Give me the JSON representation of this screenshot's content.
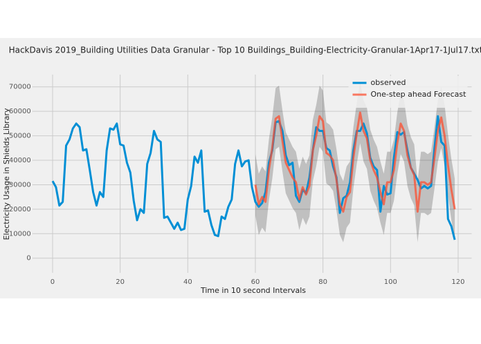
{
  "chart_data": {
    "type": "line",
    "title": "HackDavis 2019_Building Utilities Data Granular - Top 10 Buildings_Building-Electricity-Granular-1Apr17-1Jul17.txt",
    "xlabel": "Time in 10 second Intervals",
    "ylabel": "Electricity Usage in Shields Library",
    "x": [
      0,
      1,
      2,
      3,
      4,
      5,
      6,
      7,
      8,
      9,
      10,
      11,
      12,
      13,
      14,
      15,
      16,
      17,
      18,
      19,
      20,
      21,
      22,
      23,
      24,
      25,
      26,
      27,
      28,
      29,
      30,
      31,
      32,
      33,
      34,
      35,
      36,
      37,
      38,
      39,
      40,
      41,
      42,
      43,
      44,
      45,
      46,
      47,
      48,
      49,
      50,
      51,
      52,
      53,
      54,
      55,
      56,
      57,
      58,
      59,
      60,
      61,
      62,
      63,
      64,
      65,
      66,
      67,
      68,
      69,
      70,
      71,
      72,
      73,
      74,
      75,
      76,
      77,
      78,
      79,
      80,
      81,
      82,
      83,
      84,
      85,
      86,
      87,
      88,
      89,
      90,
      91,
      92,
      93,
      94,
      95,
      96,
      97,
      98,
      99,
      100,
      101,
      102,
      103,
      104,
      105,
      106,
      107,
      108,
      109,
      110,
      111,
      112,
      113,
      114,
      115,
      116,
      117,
      118,
      119
    ],
    "interval": {
      "color": "#000000",
      "lower": [
        null,
        null,
        null,
        null,
        null,
        null,
        null,
        null,
        null,
        null,
        null,
        null,
        null,
        null,
        null,
        null,
        null,
        null,
        null,
        null,
        null,
        null,
        null,
        null,
        null,
        null,
        null,
        null,
        null,
        null,
        null,
        null,
        null,
        null,
        null,
        null,
        null,
        null,
        null,
        null,
        null,
        null,
        null,
        null,
        null,
        null,
        null,
        null,
        null,
        null,
        null,
        null,
        null,
        null,
        null,
        null,
        null,
        null,
        null,
        null,
        17500,
        9500,
        12500,
        10500,
        23500,
        32500,
        44500,
        45500,
        35500,
        26500,
        23500,
        20500,
        18500,
        11500,
        16500,
        13500,
        17000,
        31500,
        37500,
        45500,
        43500,
        30500,
        29500,
        27500,
        19500,
        9500,
        6500,
        12500,
        14500,
        28500,
        38500,
        47000,
        39500,
        36500,
        27500,
        23500,
        20500,
        14500,
        9500,
        18500,
        18500,
        23500,
        34500,
        42500,
        39500,
        29500,
        24500,
        21500,
        6500,
        18500,
        18500,
        17500,
        18500,
        28500,
        39500,
        45000,
        37500,
        25500,
        15500,
        7500
      ],
      "upper": [
        null,
        null,
        null,
        null,
        null,
        null,
        null,
        null,
        null,
        null,
        null,
        null,
        null,
        null,
        null,
        null,
        null,
        null,
        null,
        null,
        null,
        null,
        null,
        null,
        null,
        null,
        null,
        null,
        null,
        null,
        null,
        null,
        null,
        null,
        null,
        null,
        null,
        null,
        null,
        null,
        null,
        null,
        null,
        null,
        null,
        null,
        null,
        null,
        null,
        null,
        null,
        null,
        null,
        null,
        null,
        null,
        null,
        null,
        null,
        null,
        42500,
        34500,
        37500,
        35500,
        48500,
        57500,
        69500,
        70500,
        60500,
        51500,
        48500,
        45500,
        43500,
        36500,
        41500,
        38500,
        42000,
        56500,
        62500,
        70500,
        68500,
        55500,
        54500,
        52500,
        44500,
        34500,
        31500,
        37500,
        39500,
        53500,
        63500,
        72000,
        64500,
        61500,
        52500,
        48500,
        45500,
        39500,
        34500,
        43500,
        43500,
        48500,
        59500,
        67500,
        64500,
        54500,
        49500,
        46500,
        31500,
        43500,
        43500,
        42500,
        43500,
        53500,
        64500,
        70000,
        62500,
        50500,
        40500,
        32500
      ]
    },
    "series": [
      {
        "name": "observed",
        "color": "#008fd5",
        "values": [
          31500,
          29000,
          21500,
          23000,
          46000,
          48500,
          53000,
          55000,
          53500,
          44000,
          44500,
          36000,
          27000,
          21500,
          27000,
          25000,
          44000,
          53000,
          52500,
          55000,
          46500,
          46000,
          39000,
          35000,
          23500,
          15500,
          20000,
          18500,
          38500,
          43000,
          52000,
          48500,
          47500,
          16500,
          17000,
          14500,
          12000,
          14500,
          11500,
          12000,
          24000,
          29500,
          41500,
          39000,
          44000,
          19000,
          19500,
          13500,
          9500,
          9000,
          17000,
          16000,
          21000,
          24000,
          38500,
          44000,
          37500,
          39500,
          40000,
          29000,
          23000,
          21000,
          22500,
          27000,
          39000,
          44000,
          55500,
          56000,
          52000,
          42000,
          38000,
          39000,
          25500,
          23000,
          28000,
          26500,
          33000,
          44000,
          53500,
          52000,
          52000,
          45000,
          44000,
          37500,
          33000,
          18500,
          24500,
          25500,
          31000,
          44000,
          52000,
          52000,
          55000,
          51000,
          41000,
          37500,
          36000,
          19000,
          29500,
          26000,
          26500,
          41000,
          51500,
          50500,
          51500,
          44000,
          37000,
          34500,
          32000,
          28500,
          29500,
          28500,
          29500,
          45000,
          58000,
          47500,
          46000,
          16000,
          13000,
          7500
        ]
      },
      {
        "name": "One-step ahead Forecast",
        "color": "#fc4f30",
        "values": [
          null,
          null,
          null,
          null,
          null,
          null,
          null,
          null,
          null,
          null,
          null,
          null,
          null,
          null,
          null,
          null,
          null,
          null,
          null,
          null,
          null,
          null,
          null,
          null,
          null,
          null,
          null,
          null,
          null,
          null,
          null,
          null,
          null,
          null,
          null,
          null,
          null,
          null,
          null,
          null,
          null,
          null,
          null,
          null,
          null,
          null,
          null,
          null,
          null,
          null,
          null,
          null,
          null,
          null,
          null,
          null,
          null,
          null,
          null,
          null,
          30000,
          22000,
          25000,
          23000,
          36000,
          45000,
          57000,
          58000,
          48000,
          39000,
          36000,
          33000,
          31000,
          24000,
          29000,
          26000,
          29500,
          44000,
          50000,
          58000,
          56000,
          43000,
          42000,
          40000,
          32000,
          22000,
          19000,
          25000,
          27000,
          41000,
          51000,
          59500,
          52000,
          49000,
          40000,
          36000,
          33000,
          27000,
          22000,
          31000,
          31000,
          36000,
          47000,
          55000,
          52000,
          42000,
          37000,
          34000,
          19000,
          31000,
          31000,
          30000,
          31000,
          41000,
          52000,
          57500,
          50000,
          38000,
          28000,
          20000
        ]
      }
    ],
    "xlim": [
      -6,
      124
    ],
    "xticks": [
      0,
      20,
      40,
      60,
      80,
      100,
      120
    ],
    "ylim": [
      -6000,
      75000
    ],
    "yticks": [
      0,
      10000,
      20000,
      30000,
      40000,
      50000,
      60000,
      70000
    ],
    "grid": true,
    "legend": "upper right"
  }
}
